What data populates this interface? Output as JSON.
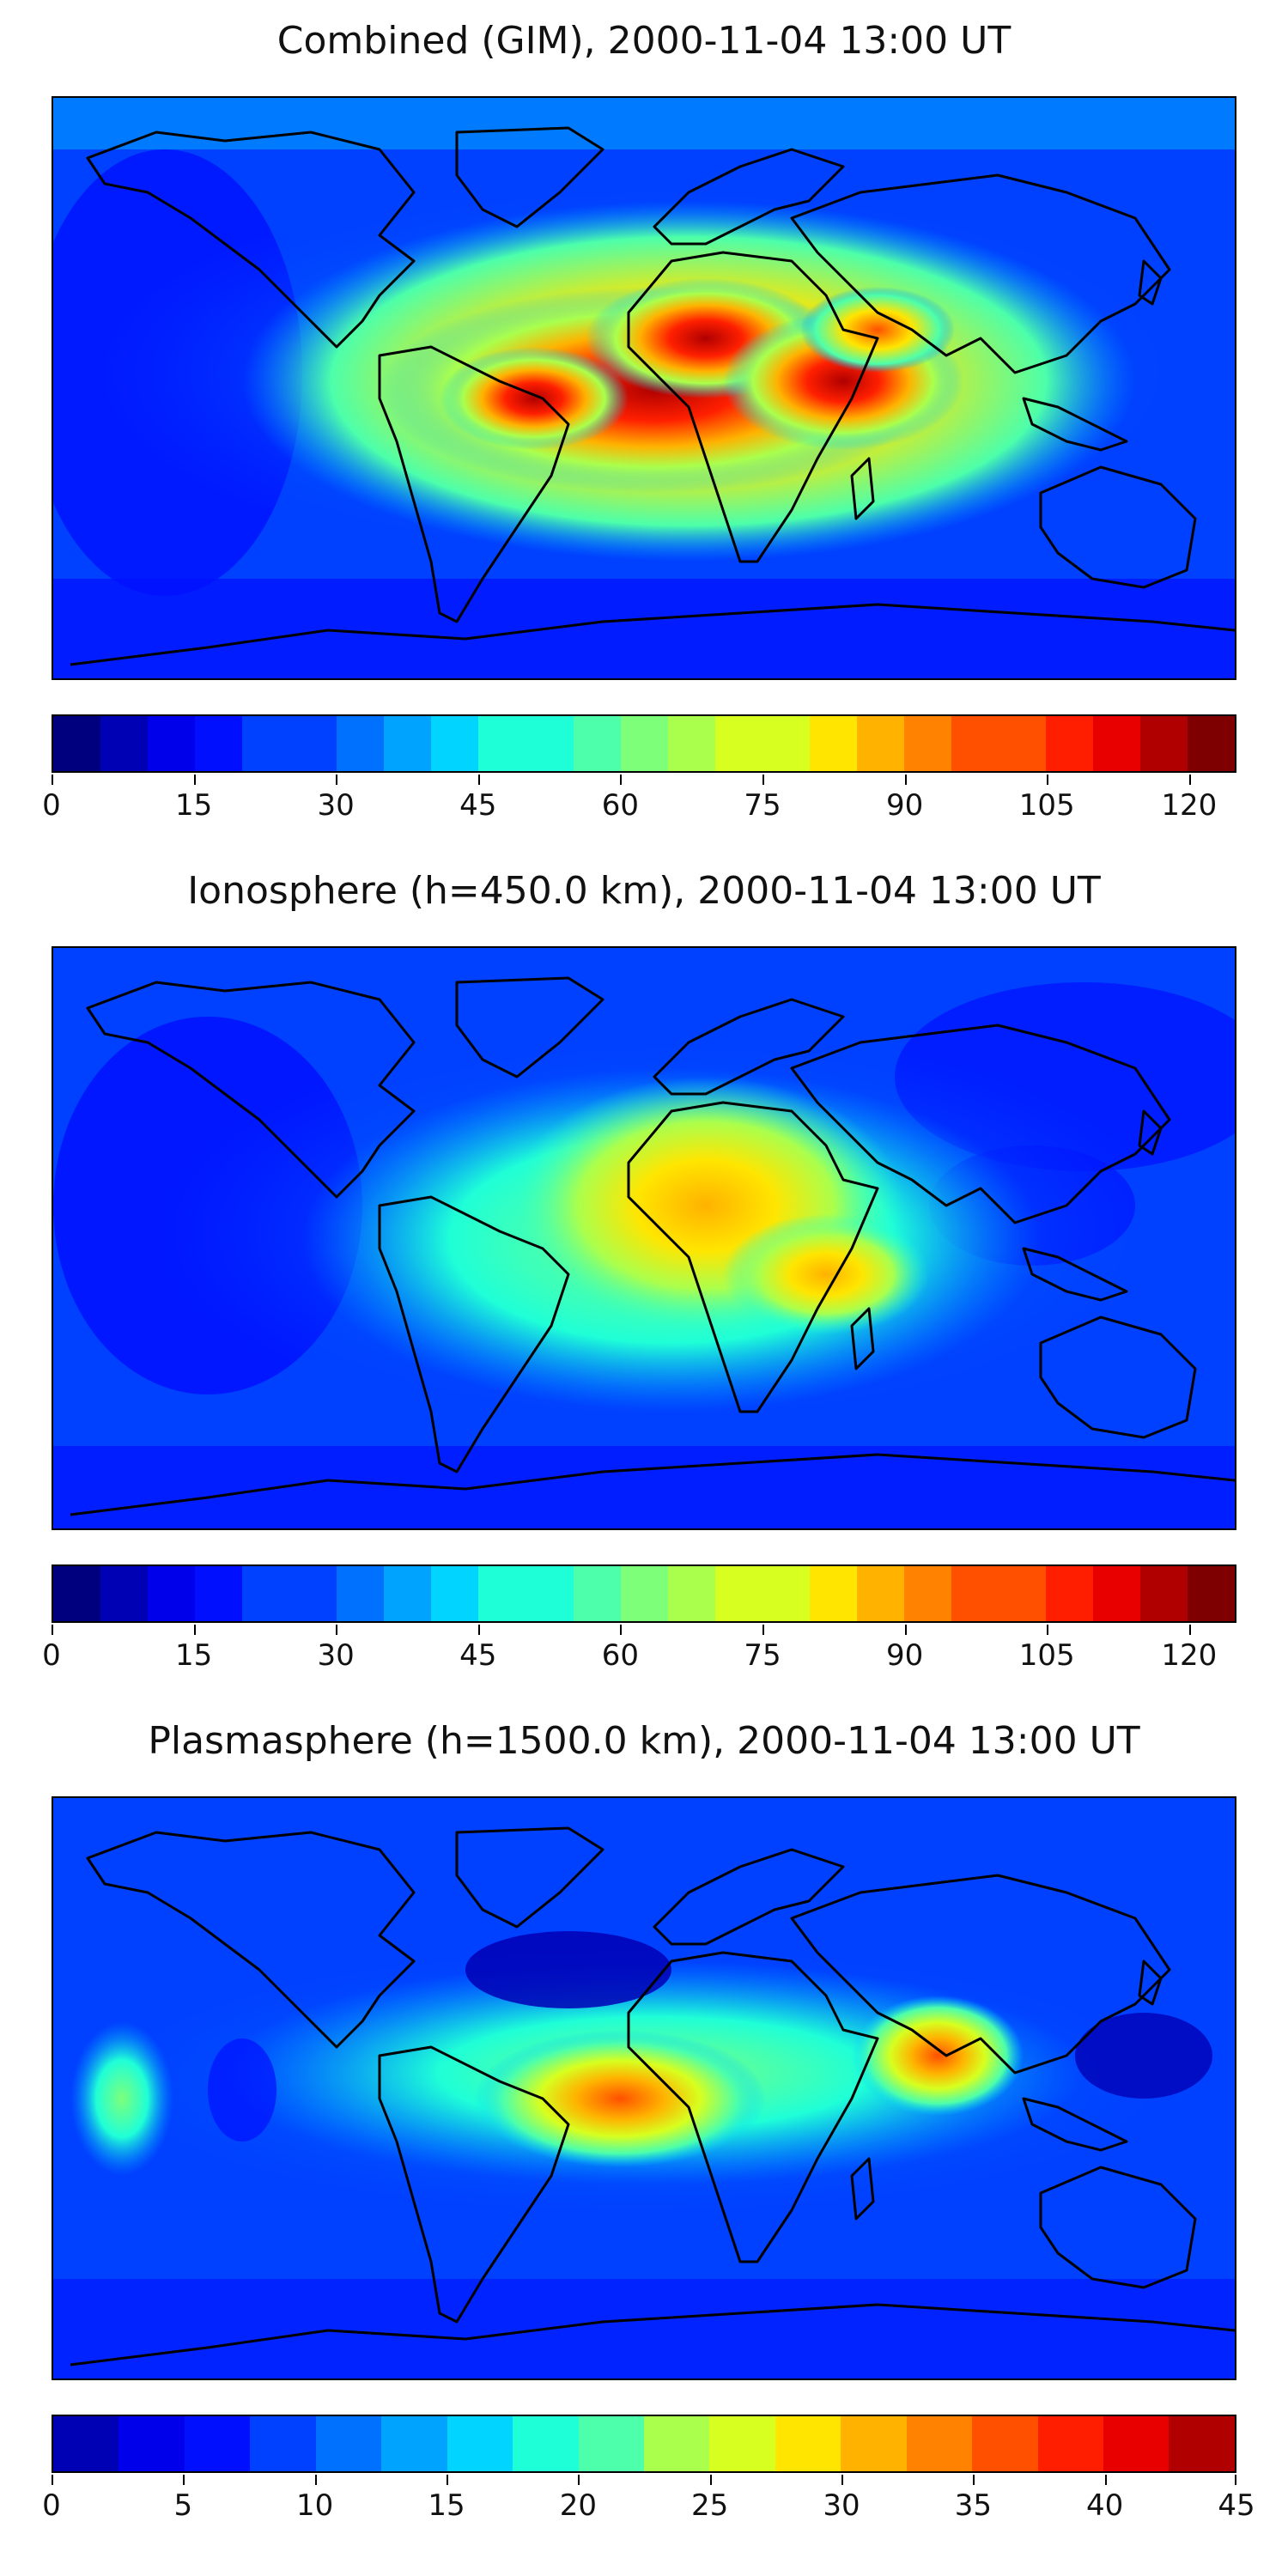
{
  "figure": {
    "panels": [
      {
        "title": "Combined (GIM), 2000-11-04 13:00 UT",
        "colorbar": {
          "min": 0,
          "max": 125,
          "levels": 25,
          "ticks": [
            0,
            15,
            30,
            45,
            60,
            75,
            90,
            105,
            120
          ]
        },
        "hotspots": [
          {
            "lon": 5,
            "lat": 5,
            "level": 0.97
          },
          {
            "lon": 15,
            "lat": 18,
            "level": 0.92
          },
          {
            "lon": 45,
            "lat": 2,
            "level": 0.85
          },
          {
            "lon": 40,
            "lat": 20,
            "level": 0.8
          },
          {
            "lon": -25,
            "lat": 8,
            "level": 0.85
          }
        ],
        "background_level": 0.25
      },
      {
        "title": "Ionosphere  (h=450.0 km), 2000-11-04 13:00 UT",
        "colorbar": {
          "min": 0,
          "max": 125,
          "levels": 25,
          "ticks": [
            0,
            15,
            30,
            45,
            60,
            75,
            90,
            105,
            120
          ]
        },
        "hotspots": [
          {
            "lon": 10,
            "lat": 18,
            "level": 0.72
          },
          {
            "lon": 45,
            "lat": -5,
            "level": 0.72
          },
          {
            "lon": 25,
            "lat": 0,
            "level": 0.62
          }
        ],
        "background_level": 0.2
      },
      {
        "title": "Plasmasphere (h=1500.0 km), 2000-11-04 13:00 UT",
        "colorbar": {
          "min": 0,
          "max": 45,
          "levels": 18,
          "ticks": [
            0,
            5,
            10,
            15,
            20,
            25,
            30,
            35,
            40,
            45
          ]
        },
        "hotspots": [
          {
            "lon": -30,
            "lat": 3,
            "level": 0.82
          },
          {
            "lon": 78,
            "lat": 15,
            "level": 0.8
          },
          {
            "lon": -165,
            "lat": 5,
            "level": 0.45
          }
        ],
        "background_level": 0.22
      }
    ]
  },
  "colors": {
    "jet": [
      "#00007f",
      "#0000b5",
      "#0000ea",
      "#0010ff",
      "#0040ff",
      "#0070ff",
      "#00a4ff",
      "#00d4ff",
      "#1fffd7",
      "#4dffaa",
      "#7dff7a",
      "#aaff4d",
      "#d7ff1f",
      "#ffe500",
      "#ffb200",
      "#ff8300",
      "#ff5000",
      "#ff1f00",
      "#e80000",
      "#b00000",
      "#7f0000"
    ],
    "coast": "#000000"
  }
}
